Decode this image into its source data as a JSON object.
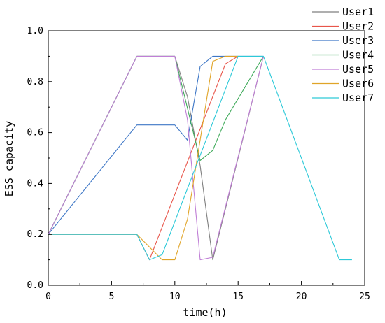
{
  "chart_data": {
    "type": "line",
    "title": "",
    "xlabel": "time(h)",
    "ylabel": "ESS capacity",
    "xlim": [
      0,
      25
    ],
    "ylim": [
      0,
      1.0
    ],
    "x_ticks": [
      0,
      5,
      10,
      15,
      20,
      25
    ],
    "x_tick_labels": [
      "0",
      "5",
      "10",
      "15",
      "20",
      "25"
    ],
    "y_ticks": [
      0,
      0.2,
      0.4,
      0.6,
      0.8,
      1.0
    ],
    "y_tick_labels": [
      "0.0",
      "0.2",
      "0.4",
      "0.6",
      "0.8",
      "1.0"
    ],
    "grid": false,
    "legend_position": "top-right-outside",
    "series": [
      {
        "name": "User1",
        "color": "#7f7f7f",
        "x": [
          0,
          7,
          10,
          11,
          12,
          13,
          17
        ],
        "y": [
          0.2,
          0.9,
          0.9,
          0.74,
          0.47,
          0.1,
          0.9
        ]
      },
      {
        "name": "User2",
        "color": "#e8554a",
        "x": [
          0,
          7,
          8,
          14,
          15
        ],
        "y": [
          0.2,
          0.2,
          0.1,
          0.87,
          0.9
        ]
      },
      {
        "name": "User3",
        "color": "#3e77c6",
        "x": [
          0,
          7,
          10,
          11,
          12,
          13,
          17
        ],
        "y": [
          0.2,
          0.63,
          0.63,
          0.57,
          0.86,
          0.9,
          0.9
        ]
      },
      {
        "name": "User4",
        "color": "#3faa5a",
        "x": [
          0,
          7,
          10,
          12,
          13,
          14,
          17
        ],
        "y": [
          0.2,
          0.9,
          0.9,
          0.49,
          0.53,
          0.65,
          0.9
        ]
      },
      {
        "name": "User5",
        "color": "#c07fd6",
        "x": [
          0,
          7,
          10,
          11,
          12,
          13,
          17
        ],
        "y": [
          0.2,
          0.9,
          0.9,
          0.65,
          0.1,
          0.11,
          0.9
        ]
      },
      {
        "name": "User6",
        "color": "#e0a428",
        "x": [
          0,
          7,
          9,
          10,
          11,
          13,
          14,
          15
        ],
        "y": [
          0.2,
          0.2,
          0.1,
          0.1,
          0.26,
          0.88,
          0.9,
          0.9
        ]
      },
      {
        "name": "User7",
        "color": "#2dc9d8",
        "x": [
          0,
          7,
          8,
          9,
          15,
          17,
          23,
          24
        ],
        "y": [
          0.2,
          0.2,
          0.1,
          0.12,
          0.9,
          0.9,
          0.1,
          0.1
        ]
      }
    ]
  }
}
